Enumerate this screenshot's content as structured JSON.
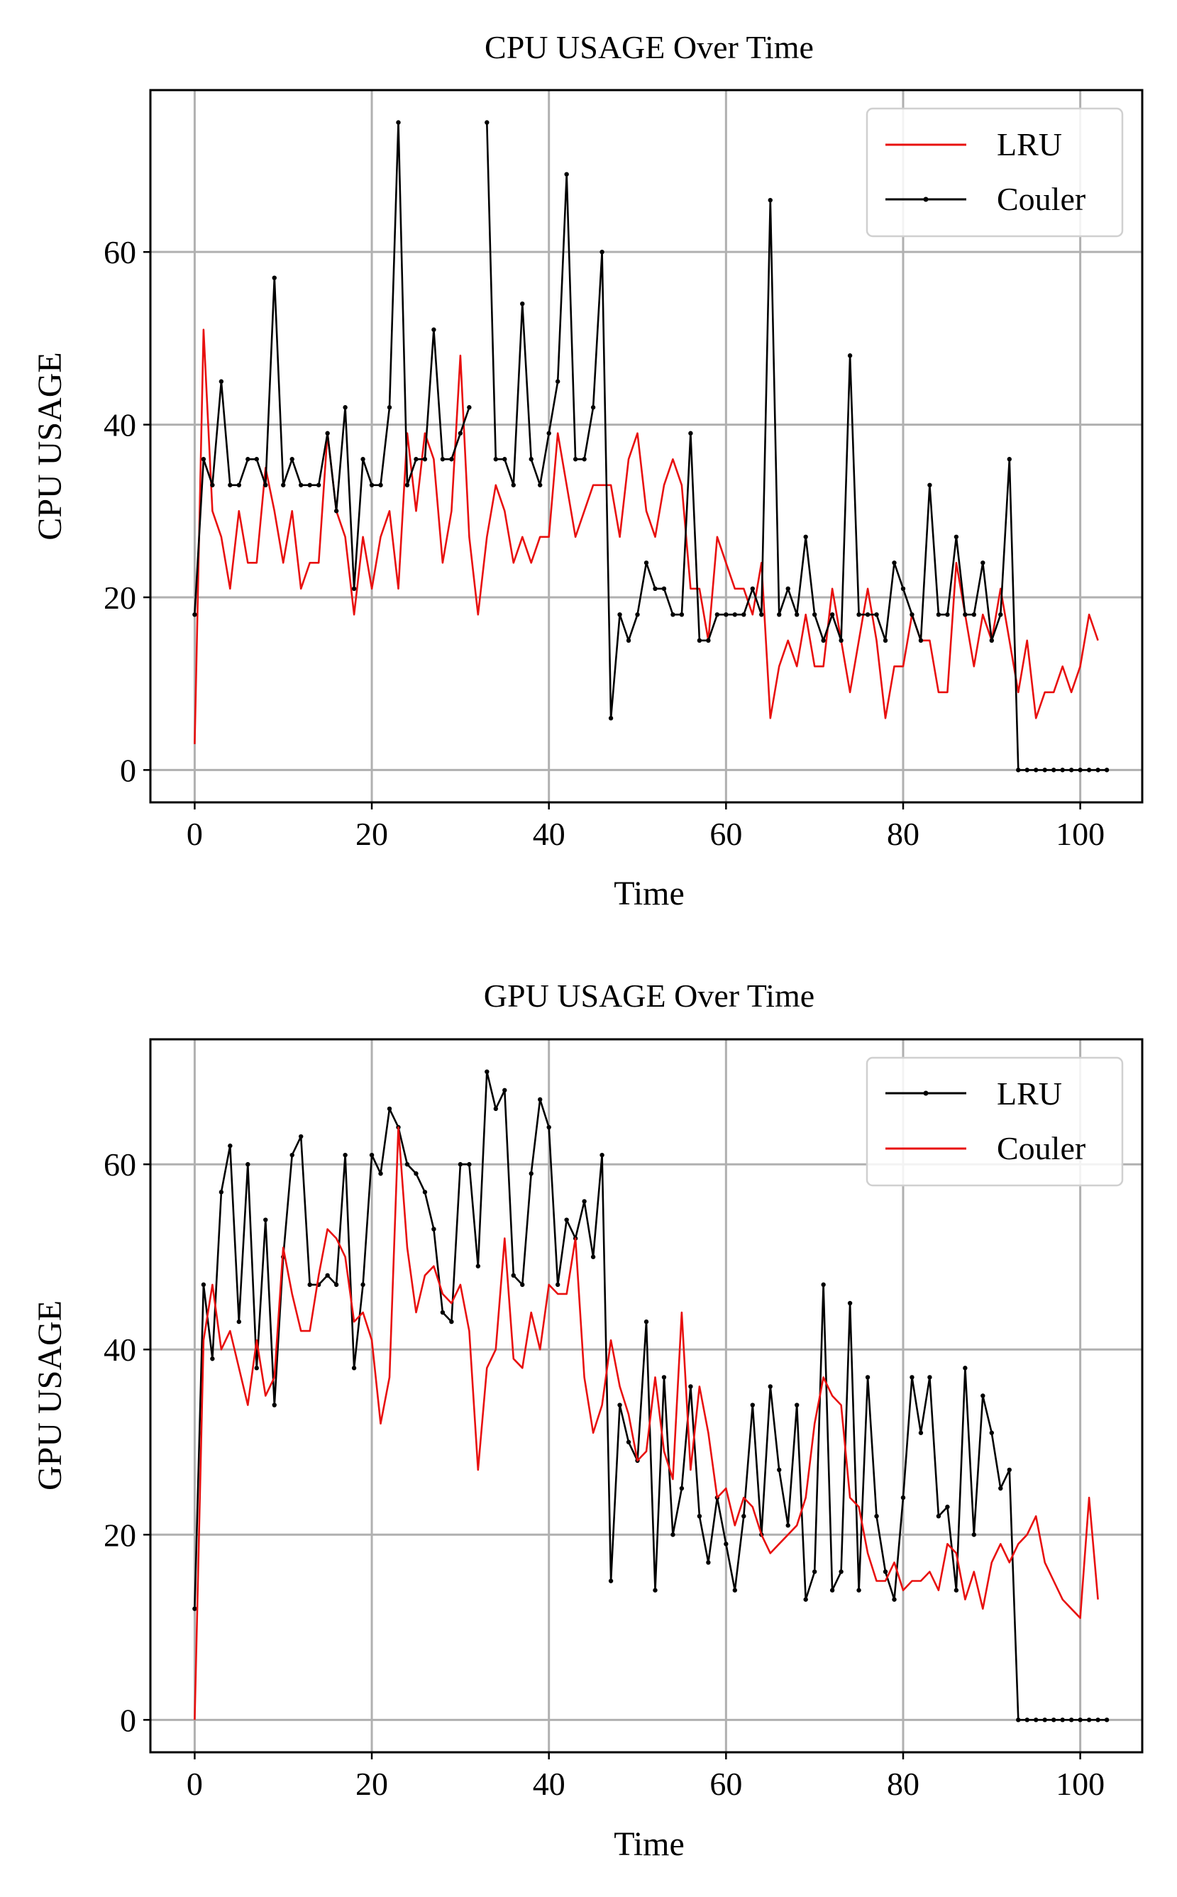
{
  "chart_data": [
    {
      "type": "line",
      "title": "CPU USAGE Over Time",
      "xlabel": "Time",
      "ylabel": "CPU USAGE",
      "xlim": [
        -5,
        107
      ],
      "ylim": [
        -3.75,
        78.75
      ],
      "xticks": [
        0,
        20,
        40,
        60,
        80,
        100
      ],
      "xtick_labels": [
        "0",
        "20",
        "40",
        "60",
        "80",
        "100"
      ],
      "yticks": [
        0,
        20,
        40,
        60
      ],
      "ytick_labels": [
        "0",
        "20",
        "40",
        "60"
      ],
      "grid": true,
      "legend_position": "top-right",
      "series": [
        {
          "name": "LRU",
          "color": "#e8100f",
          "marker": false,
          "values": [
            3,
            51,
            30,
            27,
            21,
            30,
            24,
            24,
            35,
            30,
            24,
            30,
            21,
            24,
            24,
            39,
            30,
            27,
            18,
            27,
            21,
            27,
            30,
            21,
            39,
            30,
            39,
            36,
            24,
            30,
            48,
            27,
            18,
            27,
            33,
            30,
            24,
            27,
            24,
            27,
            27,
            39,
            33,
            27,
            30,
            33,
            33,
            33,
            27,
            36,
            39,
            30,
            27,
            33,
            36,
            33,
            21,
            21,
            15,
            27,
            24,
            21,
            21,
            18,
            24,
            6,
            12,
            15,
            12,
            18,
            12,
            12,
            21,
            15,
            9,
            15,
            21,
            15,
            6,
            12,
            12,
            18,
            15,
            15,
            9,
            9,
            24,
            18,
            12,
            18,
            15,
            21,
            15,
            9,
            15,
            6,
            9,
            9,
            12,
            9,
            12,
            18,
            15
          ]
        },
        {
          "name": "Couler",
          "color": "#000000",
          "marker": true,
          "values": [
            18,
            36,
            33,
            45,
            33,
            33,
            36,
            36,
            33,
            57,
            33,
            36,
            33,
            33,
            33,
            39,
            30,
            42,
            21,
            36,
            33,
            33,
            42,
            75,
            33,
            36,
            36,
            51,
            36,
            36,
            39,
            42,
            null,
            75,
            36,
            36,
            33,
            54,
            36,
            33,
            39,
            45,
            69,
            36,
            36,
            42,
            60,
            6,
            18,
            15,
            18,
            24,
            21,
            21,
            18,
            18,
            39,
            15,
            15,
            18,
            18,
            18,
            18,
            21,
            18,
            66,
            18,
            21,
            18,
            27,
            18,
            15,
            18,
            15,
            48,
            18,
            18,
            18,
            15,
            24,
            21,
            18,
            15,
            33,
            18,
            18,
            27,
            18,
            18,
            24,
            15,
            18,
            36,
            0,
            0,
            0,
            0,
            0,
            0,
            0,
            0,
            0,
            0,
            0
          ]
        }
      ]
    },
    {
      "type": "line",
      "title": "GPU USAGE Over Time",
      "xlabel": "Time",
      "ylabel": "GPU USAGE",
      "xlim": [
        -5,
        107
      ],
      "ylim": [
        -3.5,
        73.5
      ],
      "xticks": [
        0,
        20,
        40,
        60,
        80,
        100
      ],
      "xtick_labels": [
        "0",
        "20",
        "40",
        "60",
        "80",
        "100"
      ],
      "yticks": [
        0,
        20,
        40,
        60
      ],
      "ytick_labels": [
        "0",
        "20",
        "40",
        "60"
      ],
      "grid": true,
      "legend_position": "top-right",
      "series": [
        {
          "name": "LRU",
          "color": "#000000",
          "marker": true,
          "values": [
            12,
            47,
            39,
            57,
            62,
            43,
            60,
            38,
            54,
            34,
            50,
            61,
            63,
            47,
            47,
            48,
            47,
            61,
            38,
            47,
            61,
            59,
            66,
            64,
            60,
            59,
            57,
            53,
            44,
            43,
            60,
            60,
            49,
            70,
            66,
            68,
            48,
            47,
            59,
            67,
            64,
            47,
            54,
            52,
            56,
            50,
            61,
            15,
            34,
            30,
            28,
            43,
            14,
            37,
            20,
            25,
            36,
            22,
            17,
            24,
            19,
            14,
            22,
            34,
            20,
            36,
            27,
            21,
            34,
            13,
            16,
            47,
            14,
            16,
            45,
            14,
            37,
            22,
            16,
            13,
            24,
            37,
            31,
            37,
            22,
            23,
            14,
            38,
            20,
            35,
            31,
            25,
            27,
            0,
            0,
            0,
            0,
            0,
            0,
            0,
            0,
            0,
            0,
            0
          ]
        },
        {
          "name": "Couler",
          "color": "#e8100f",
          "marker": false,
          "values": [
            0,
            41,
            47,
            40,
            42,
            38,
            34,
            41,
            35,
            37,
            51,
            46,
            42,
            42,
            48,
            53,
            52,
            50,
            43,
            44,
            41,
            32,
            37,
            64,
            51,
            44,
            48,
            49,
            46,
            45,
            47,
            42,
            27,
            38,
            40,
            52,
            39,
            38,
            44,
            40,
            47,
            46,
            46,
            52,
            37,
            31,
            34,
            41,
            36,
            33,
            28,
            29,
            37,
            29,
            26,
            44,
            27,
            36,
            31,
            24,
            25,
            21,
            24,
            23,
            20,
            18,
            19,
            20,
            21,
            24,
            32,
            37,
            35,
            34,
            24,
            23,
            18,
            15,
            15,
            17,
            14,
            15,
            15,
            16,
            14,
            19,
            18,
            13,
            16,
            12,
            17,
            19,
            17,
            19,
            20,
            22,
            17,
            15,
            13,
            12,
            11,
            24,
            13
          ]
        }
      ]
    }
  ]
}
